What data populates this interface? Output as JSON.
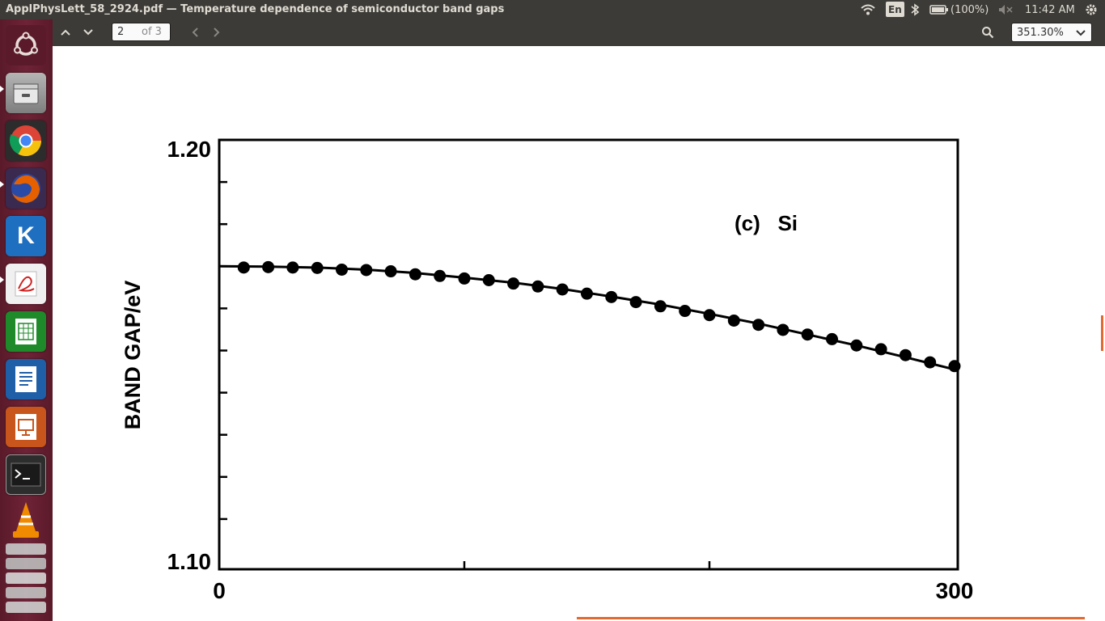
{
  "window": {
    "title": "ApplPhysLett_58_2924.pdf — Temperature dependence of semiconductor band gaps"
  },
  "tray": {
    "keyboard": "En",
    "battery": "(100%)",
    "clock": "11:42 AM"
  },
  "launcher": {
    "items": [
      {
        "name": "ubuntu-dash-icon",
        "color": "#dd4814"
      },
      {
        "name": "files-icon",
        "color": "#9b9b9b"
      },
      {
        "name": "chrome-icon",
        "color": "#4285f4"
      },
      {
        "name": "firefox-icon",
        "color": "#e66000"
      },
      {
        "name": "kile-icon",
        "color": "#1f6fc0"
      },
      {
        "name": "document-viewer-icon",
        "color": "#d02020"
      },
      {
        "name": "calc-icon",
        "color": "#1e8a2a"
      },
      {
        "name": "writer-icon",
        "color": "#1f5fa8"
      },
      {
        "name": "impress-icon",
        "color": "#c8551c"
      },
      {
        "name": "terminal-icon",
        "color": "#2d2d2d"
      },
      {
        "name": "vlc-icon",
        "color": "#f08a00"
      }
    ]
  },
  "toolbar": {
    "page_current": "2",
    "page_total": "of 3",
    "zoom": "351.30%"
  },
  "chart_data": {
    "type": "scatter",
    "title": "(c)   Si",
    "xlabel": "",
    "ylabel": "BAND GAP/eV",
    "xlim": [
      0,
      300
    ],
    "ylim": [
      1.1,
      1.2
    ],
    "x_ticks": [
      "0",
      "300"
    ],
    "y_ticks": [
      "1.20",
      "1.10"
    ],
    "points_x": [
      10,
      20,
      30,
      40,
      50,
      60,
      70,
      80,
      90,
      100,
      110,
      120,
      130,
      140,
      150,
      160,
      170,
      180,
      190,
      200,
      210,
      220,
      230,
      240,
      250,
      260,
      270,
      280,
      290,
      300
    ],
    "points_y": [
      1.1697,
      1.1698,
      1.1697,
      1.1696,
      1.1692,
      1.1691,
      1.1688,
      1.1681,
      1.1677,
      1.1671,
      1.1667,
      1.1659,
      1.1652,
      1.1645,
      1.1635,
      1.1627,
      1.1615,
      1.1605,
      1.1594,
      1.1584,
      1.1571,
      1.1561,
      1.1549,
      1.1538,
      1.1527,
      1.1512,
      1.1503,
      1.1489,
      1.1472,
      1.1463
    ],
    "fit_x": [
      0,
      20,
      40,
      60,
      80,
      100,
      120,
      140,
      160,
      180,
      200,
      220,
      240,
      260,
      280,
      300
    ],
    "fit_y": [
      1.17,
      1.1699,
      1.1697,
      1.1692,
      1.1684,
      1.1673,
      1.1661,
      1.1646,
      1.1628,
      1.1609,
      1.1587,
      1.1564,
      1.1538,
      1.1512,
      1.1484,
      1.1455
    ],
    "legend": "none",
    "grid": false
  }
}
